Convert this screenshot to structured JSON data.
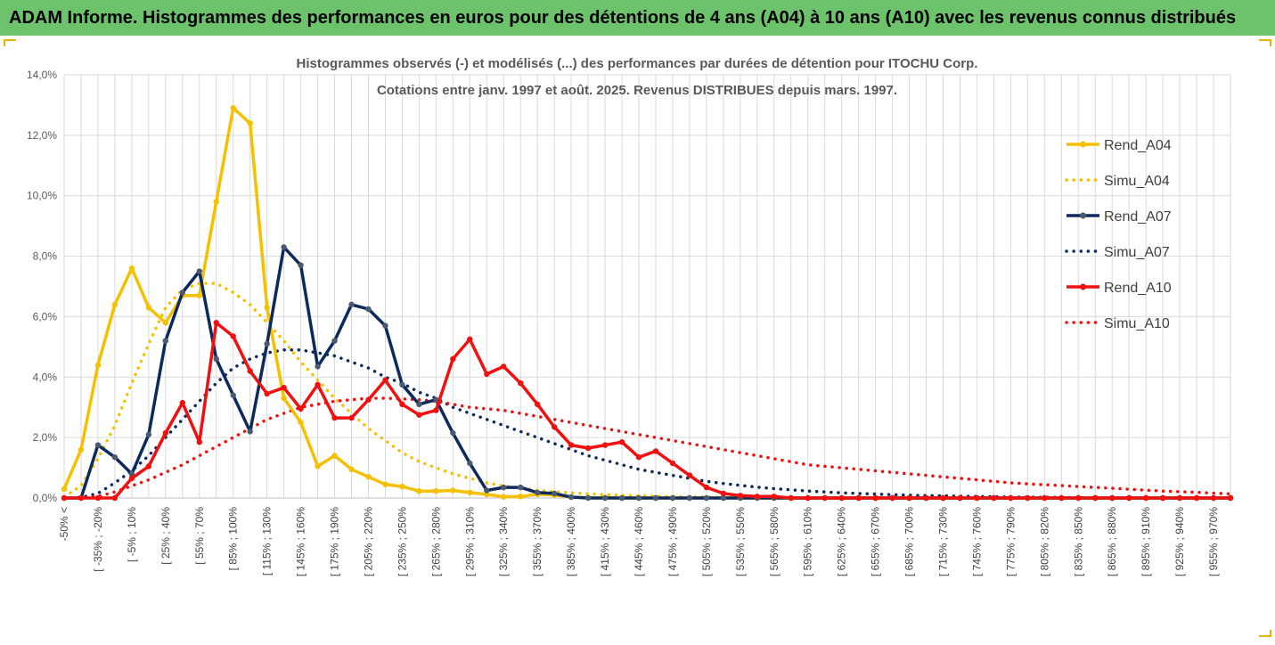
{
  "header": {
    "banner": "ADAM Informe. Histogrammes des performances en euros pour des détentions de 4 ans (A04) à 10 ans (A10) avec les revenus connus distribués"
  },
  "colors": {
    "banner_bg": "#6cc36c",
    "a04": "#f5c000",
    "a07": "#0d2a5c",
    "a10": "#f01010",
    "grid": "#d9d9d9",
    "title": "#595959"
  },
  "chart_data": {
    "type": "line",
    "title_line1": "Histogrammes observés (-) et modélisés (...) des performances par durées de détention pour ITOCHU Corp.",
    "title_line2": "Cotations entre janv. 1997 et août. 2025. Revenus DISTRIBUES depuis mars. 1997.",
    "ylim": [
      0,
      0.14
    ],
    "yticks": [
      "0,0%",
      "2,0%",
      "4,0%",
      "6,0%",
      "8,0%",
      "10,0%",
      "12,0%",
      "14,0%"
    ],
    "x_labels": [
      "-50% <",
      "[ -35% ; -20%",
      "[ -5% ; 10%",
      "[ 25% ; 40%",
      "[ 55% ; 70%",
      "[ 85% ; 100%",
      "[ 115% ; 130%",
      "[ 145% ; 160%",
      "[ 175% ; 190%",
      "[ 205% ; 220%",
      "[ 235% ; 250%",
      "[ 265% ; 280%",
      "[ 295% ; 310%",
      "[ 325% ; 340%",
      "[ 355% ; 370%",
      "[ 385% ; 400%",
      "[ 415% ; 430%",
      "[ 445% ; 460%",
      "[ 475% ; 490%",
      "[ 505% ; 520%",
      "[ 535% ; 550%",
      "[ 565% ; 580%",
      "[ 595% ; 610%",
      "[ 625% ; 640%",
      "[ 655% ; 670%",
      "[ 685% ; 700%",
      "[ 715% ; 730%",
      "[ 745% ; 760%",
      "[ 775% ; 790%",
      "[ 805% ; 820%",
      "[ 835% ; 850%",
      "[ 865% ; 880%",
      "[ 895% ; 910%",
      "[ 925% ; 940%",
      "[ 955% ; 970%"
    ],
    "legend_position": "right",
    "grid": true,
    "series": [
      {
        "name": "Rend_A04",
        "style": "solid",
        "color": "#f5c000",
        "values": [
          0.003,
          0.016,
          0.044,
          0.064,
          0.076,
          0.063,
          0.058,
          0.067,
          0.067,
          0.098,
          0.129,
          0.124,
          0.063,
          0.033,
          0.025,
          0.0105,
          0.014,
          0.0095,
          0.007,
          0.0045,
          0.0038,
          0.0023,
          0.0023,
          0.0025,
          0.0018,
          0.0012,
          0.0004,
          0.0005,
          0.0012,
          0.001,
          0.0003,
          0.0001,
          0.0001,
          0,
          0,
          0,
          0,
          0,
          0,
          0,
          0,
          0,
          0,
          0,
          0,
          0,
          0,
          0,
          0,
          0,
          0,
          0,
          0,
          0,
          0,
          0,
          0,
          0,
          0,
          0,
          0,
          0,
          0,
          0,
          0,
          0,
          0,
          0,
          0,
          0
        ]
      },
      {
        "name": "Simu_A04",
        "style": "dotted",
        "color": "#f5c000",
        "values": [
          0.0004,
          0.004,
          0.013,
          0.024,
          0.038,
          0.051,
          0.063,
          0.069,
          0.071,
          0.071,
          0.068,
          0.064,
          0.058,
          0.052,
          0.045,
          0.039,
          0.033,
          0.028,
          0.023,
          0.019,
          0.015,
          0.012,
          0.01,
          0.008,
          0.0065,
          0.005,
          0.004,
          0.0032,
          0.0026,
          0.0021,
          0.0017,
          0.0014,
          0.0011,
          0.0009,
          0.0007,
          0.0006,
          0.0005,
          0.0004,
          0.0003,
          0.0002,
          0.0002,
          0.0001,
          0.0001,
          0,
          0,
          0,
          0,
          0,
          0,
          0,
          0,
          0,
          0,
          0,
          0,
          0,
          0,
          0,
          0,
          0,
          0,
          0,
          0,
          0,
          0,
          0,
          0,
          0,
          0,
          0
        ]
      },
      {
        "name": "Rend_A07",
        "style": "solid",
        "color": "#0d2a5c",
        "values": [
          0,
          0,
          0.0175,
          0.0135,
          0.008,
          0.021,
          0.052,
          0.068,
          0.075,
          0.046,
          0.034,
          0.022,
          0.051,
          0.083,
          0.077,
          0.0435,
          0.052,
          0.064,
          0.0625,
          0.057,
          0.0375,
          0.031,
          0.0325,
          0.0215,
          0.0115,
          0.0025,
          0.0035,
          0.0035,
          0.0018,
          0.0015,
          0.0003,
          0,
          0,
          0,
          0,
          0,
          0,
          0,
          0,
          0,
          0,
          0,
          0,
          0,
          0,
          0,
          0,
          0,
          0,
          0,
          0,
          0,
          0,
          0,
          0,
          0,
          0,
          0,
          0,
          0,
          0,
          0,
          0,
          0,
          0,
          0,
          0,
          0,
          0,
          0
        ]
      },
      {
        "name": "Simu_A07",
        "style": "dotted",
        "color": "#0d2a5c",
        "values": [
          0,
          0.0002,
          0.0015,
          0.005,
          0.009,
          0.014,
          0.02,
          0.026,
          0.032,
          0.038,
          0.043,
          0.046,
          0.048,
          0.049,
          0.049,
          0.048,
          0.047,
          0.045,
          0.043,
          0.04,
          0.038,
          0.035,
          0.033,
          0.03,
          0.028,
          0.026,
          0.024,
          0.022,
          0.02,
          0.018,
          0.016,
          0.014,
          0.0125,
          0.011,
          0.0095,
          0.0085,
          0.0075,
          0.0065,
          0.0055,
          0.0048,
          0.0042,
          0.0036,
          0.0031,
          0.0027,
          0.0023,
          0.002,
          0.0017,
          0.0015,
          0.0013,
          0.0011,
          0.0009,
          0.0008,
          0.0007,
          0.0006,
          0.0005,
          0.0004,
          0.0003,
          0.0003,
          0.0002,
          0.0002,
          0.0001,
          0.0001,
          0.0001,
          0,
          0,
          0,
          0,
          0,
          0,
          0
        ]
      },
      {
        "name": "Rend_A10",
        "style": "solid",
        "color": "#f01010",
        "values": [
          0,
          0,
          0,
          0,
          0.0065,
          0.0105,
          0.0215,
          0.0315,
          0.0185,
          0.058,
          0.0535,
          0.042,
          0.0345,
          0.0365,
          0.0295,
          0.0375,
          0.0265,
          0.0265,
          0.0325,
          0.039,
          0.031,
          0.0275,
          0.029,
          0.046,
          0.0525,
          0.041,
          0.0435,
          0.038,
          0.031,
          0.0235,
          0.0175,
          0.0165,
          0.0175,
          0.0185,
          0.0135,
          0.0155,
          0.0115,
          0.0075,
          0.0035,
          0.0015,
          0.0008,
          0.0005,
          0.0005,
          0,
          0,
          0,
          0,
          0,
          0,
          0,
          0,
          0,
          0,
          0,
          0,
          0,
          0,
          0,
          0,
          0,
          0,
          0,
          0,
          0,
          0,
          0,
          0,
          0,
          0,
          0
        ]
      },
      {
        "name": "Simu_A10",
        "style": "dotted",
        "color": "#f01010",
        "values": [
          0,
          0,
          0.0005,
          0.002,
          0.004,
          0.006,
          0.0085,
          0.011,
          0.014,
          0.017,
          0.02,
          0.023,
          0.026,
          0.028,
          0.03,
          0.031,
          0.032,
          0.0325,
          0.033,
          0.033,
          0.0328,
          0.0325,
          0.032,
          0.031,
          0.03,
          0.0295,
          0.029,
          0.028,
          0.027,
          0.026,
          0.025,
          0.024,
          0.023,
          0.022,
          0.021,
          0.02,
          0.019,
          0.018,
          0.017,
          0.016,
          0.015,
          0.014,
          0.013,
          0.012,
          0.011,
          0.0105,
          0.01,
          0.0095,
          0.009,
          0.0085,
          0.008,
          0.0075,
          0.007,
          0.0065,
          0.006,
          0.0055,
          0.005,
          0.0047,
          0.0044,
          0.0041,
          0.0038,
          0.0035,
          0.0032,
          0.0029,
          0.0026,
          0.0023,
          0.0021,
          0.0019,
          0.0016,
          0.0014
        ]
      }
    ]
  }
}
